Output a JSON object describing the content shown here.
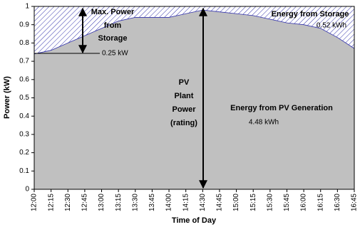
{
  "chart_data": {
    "type": "area",
    "x_label": "Time of Day",
    "y_label": "Power (kW)",
    "categories": [
      "12:00",
      "12:15",
      "12:30",
      "12:45",
      "13:00",
      "13:15",
      "13:30",
      "13:45",
      "14:00",
      "14:15",
      "14:30",
      "14:45",
      "15:00",
      "15:15",
      "15:30",
      "15:45",
      "16:00",
      "16:15",
      "16:30",
      "16:45"
    ],
    "values": [
      0.74,
      0.76,
      0.8,
      0.84,
      0.88,
      0.92,
      0.94,
      0.94,
      0.94,
      0.96,
      0.98,
      0.97,
      0.96,
      0.95,
      0.93,
      0.91,
      0.9,
      0.88,
      0.83,
      0.77
    ],
    "color": "#c0c0c0",
    "storage_color": "#3333aa",
    "ylim": [
      0,
      1
    ],
    "yticks": [
      0,
      0.1,
      0.2,
      0.3,
      0.4,
      0.5,
      0.6,
      0.7,
      0.8,
      0.9,
      1
    ],
    "annotations": [
      {
        "lines": [
          "Max. Power",
          "from",
          "Storage"
        ]
      },
      {
        "lines": [
          "0.25 kW"
        ]
      },
      {
        "lines": [
          "PV",
          "Plant",
          "Power",
          "(rating)"
        ]
      },
      {
        "lines": [
          "Energy from PV Generation"
        ]
      },
      {
        "lines": [
          "4.48 kWh"
        ]
      },
      {
        "lines": [
          "Energy from Storage"
        ]
      },
      {
        "lines": [
          "0.52 kWh"
        ]
      }
    ]
  }
}
